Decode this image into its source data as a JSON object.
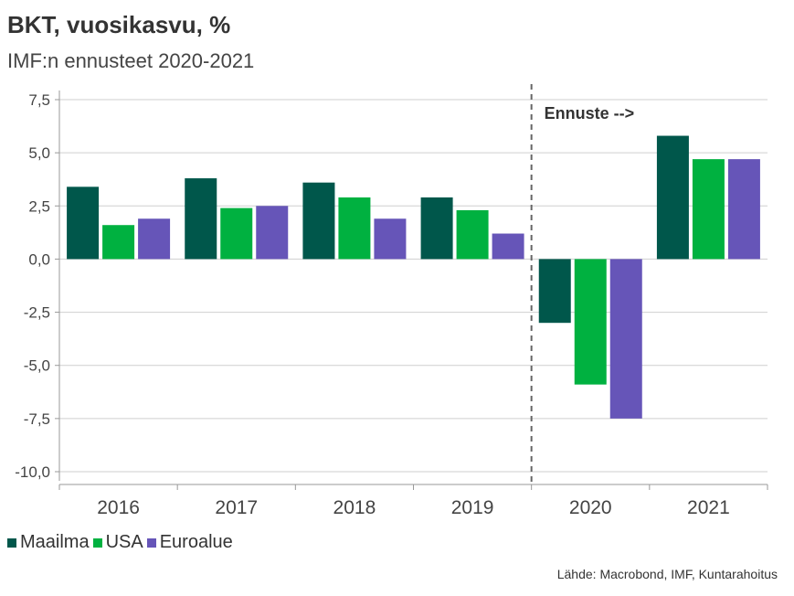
{
  "title": "BKT, vuosikasvu, %",
  "subtitle": "IMF:n ennusteet 2020-2021",
  "source": "Lähde: Macrobond, IMF, Kuntarahoitus",
  "chart_data": {
    "type": "bar",
    "categories": [
      "2016",
      "2017",
      "2018",
      "2019",
      "2020",
      "2021"
    ],
    "series": [
      {
        "name": "Maailma",
        "color": "#00574b",
        "values": [
          3.4,
          3.8,
          3.6,
          2.9,
          -3.0,
          5.8
        ]
      },
      {
        "name": "USA",
        "color": "#00b140",
        "values": [
          1.6,
          2.4,
          2.9,
          2.3,
          -5.9,
          4.7
        ]
      },
      {
        "name": "Euroalue",
        "color": "#6655b8",
        "values": [
          1.9,
          2.5,
          1.9,
          1.2,
          -7.5,
          4.7
        ]
      }
    ],
    "ylim": [
      -10.0,
      7.5
    ],
    "yticks": [
      "7,5",
      "5,0",
      "2,5",
      "0,0",
      "-2,5",
      "-5,0",
      "-7,5",
      "-10,0"
    ],
    "ytick_values": [
      7.5,
      5.0,
      2.5,
      0.0,
      -2.5,
      -5.0,
      -7.5,
      -10.0
    ],
    "grid": true,
    "legend_position": "bottom-left",
    "annotation": "Ennuste -->"
  }
}
